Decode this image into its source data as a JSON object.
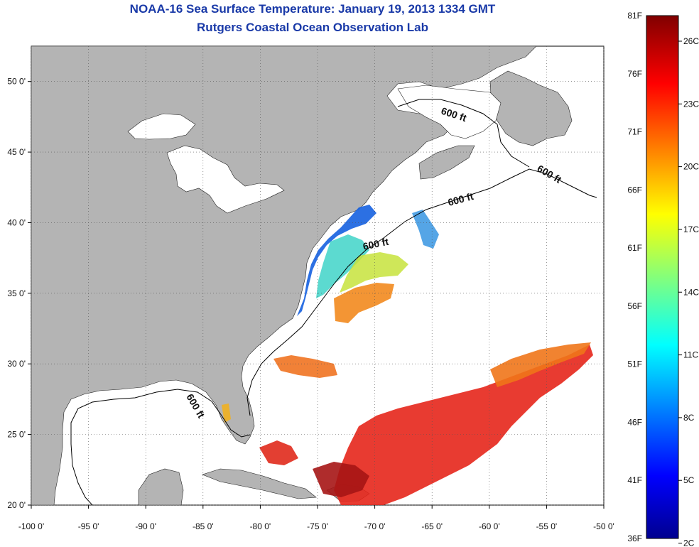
{
  "title": "NOAA-16 Sea Surface Temperature:  January 19, 2013 1334 GMT",
  "subtitle": "Rutgers Coastal Ocean Observation Lab",
  "map": {
    "lon_range": [
      -100,
      -50
    ],
    "lat_range": [
      20,
      52.5
    ],
    "lon_ticks": [
      -100,
      -95,
      -90,
      -85,
      -80,
      -75,
      -70,
      -65,
      -60,
      -55,
      -50
    ],
    "lon_labels": [
      "-100 0'",
      "-95 0'",
      "-90 0'",
      "-85 0'",
      "-80 0'",
      "-75 0'",
      "-70 0'",
      "-65 0'",
      "-60 0'",
      "-55 0'",
      "-50 0'"
    ],
    "lat_ticks": [
      20,
      25,
      30,
      35,
      40,
      45,
      50
    ],
    "lat_labels": [
      "20 0'",
      "25 0'",
      "30 0'",
      "35 0'",
      "40 0'",
      "45 0'",
      "50 0'"
    ],
    "grid": "dotted",
    "land_color": "#b4b4b4",
    "no_data_color": "#ffffff",
    "isobath_label": "600 ft"
  },
  "colorbar": {
    "range_f": [
      36,
      81
    ],
    "f_labels": [
      "81F",
      "76F",
      "71F",
      "66F",
      "61F",
      "56F",
      "51F",
      "46F",
      "41F",
      "36F"
    ],
    "c_labels": [
      "26C",
      "23C",
      "20C",
      "17C",
      "14C",
      "11C",
      "8C",
      "5C",
      "2C"
    ],
    "colormap": "jet"
  }
}
